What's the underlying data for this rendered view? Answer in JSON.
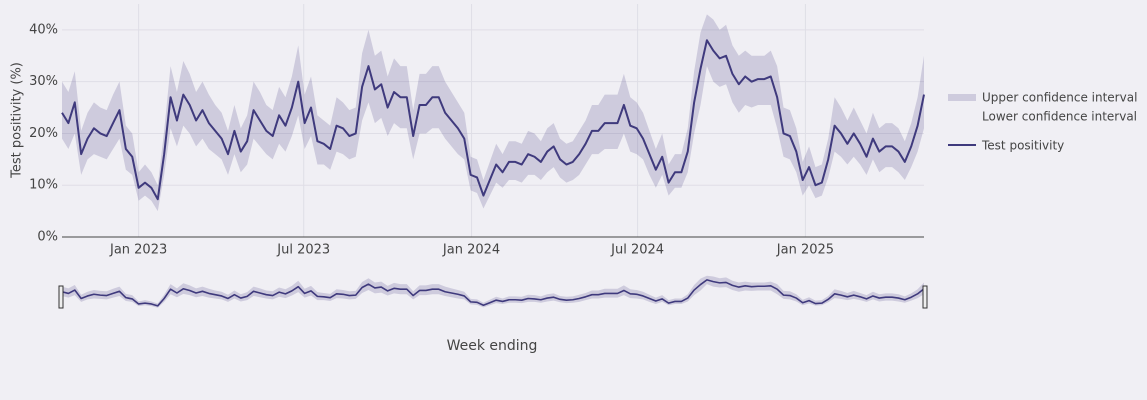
{
  "chart_data": {
    "type": "line",
    "x_label": "Week ending",
    "y_label": "Test positivity (%)",
    "x": [
      "2022-10-09",
      "2022-10-16",
      "2022-10-23",
      "2022-10-30",
      "2022-11-06",
      "2022-11-13",
      "2022-11-20",
      "2022-11-27",
      "2022-12-04",
      "2022-12-11",
      "2022-12-18",
      "2022-12-25",
      "2023-01-01",
      "2023-01-08",
      "2023-01-15",
      "2023-01-22",
      "2023-01-29",
      "2023-02-05",
      "2023-02-12",
      "2023-02-19",
      "2023-02-26",
      "2023-03-05",
      "2023-03-12",
      "2023-03-19",
      "2023-03-26",
      "2023-04-02",
      "2023-04-09",
      "2023-04-16",
      "2023-04-23",
      "2023-04-30",
      "2023-05-07",
      "2023-05-14",
      "2023-05-21",
      "2023-05-28",
      "2023-06-04",
      "2023-06-11",
      "2023-06-18",
      "2023-06-25",
      "2023-07-02",
      "2023-07-09",
      "2023-07-16",
      "2023-07-23",
      "2023-07-30",
      "2023-08-06",
      "2023-08-13",
      "2023-08-20",
      "2023-08-27",
      "2023-09-03",
      "2023-09-10",
      "2023-09-17",
      "2023-09-24",
      "2023-10-01",
      "2023-10-08",
      "2023-10-15",
      "2023-10-22",
      "2023-10-29",
      "2023-11-05",
      "2023-11-12",
      "2023-11-19",
      "2023-11-26",
      "2023-12-03",
      "2023-12-10",
      "2023-12-17",
      "2023-12-24",
      "2023-12-31",
      "2024-01-07",
      "2024-01-14",
      "2024-01-21",
      "2024-01-28",
      "2024-02-04",
      "2024-02-11",
      "2024-02-18",
      "2024-02-25",
      "2024-03-03",
      "2024-03-10",
      "2024-03-17",
      "2024-03-24",
      "2024-03-31",
      "2024-04-07",
      "2024-04-14",
      "2024-04-21",
      "2024-04-28",
      "2024-05-05",
      "2024-05-12",
      "2024-05-19",
      "2024-05-26",
      "2024-06-02",
      "2024-06-09",
      "2024-06-16",
      "2024-06-23",
      "2024-06-30",
      "2024-07-07",
      "2024-07-14",
      "2024-07-21",
      "2024-07-28",
      "2024-08-04",
      "2024-08-11",
      "2024-08-18",
      "2024-08-25",
      "2024-09-01",
      "2024-09-08",
      "2024-09-15",
      "2024-09-22",
      "2024-09-29",
      "2024-10-06",
      "2024-10-13",
      "2024-10-20",
      "2024-10-27",
      "2024-11-03",
      "2024-11-10",
      "2024-11-17",
      "2024-11-24",
      "2024-12-01",
      "2024-12-08",
      "2024-12-15",
      "2024-12-22",
      "2024-12-29",
      "2025-01-05",
      "2025-01-12",
      "2025-01-19",
      "2025-01-26",
      "2025-02-02",
      "2025-02-09",
      "2025-02-16",
      "2025-02-23",
      "2025-03-02",
      "2025-03-09",
      "2025-03-16",
      "2025-03-23",
      "2025-03-30",
      "2025-04-06",
      "2025-04-13",
      "2025-04-20",
      "2025-04-27",
      "2025-05-04",
      "2025-05-11"
    ],
    "series": [
      {
        "name": "Upper confidence interval",
        "color": "rgba(72,60,130,0.2)",
        "values": [
          30,
          28,
          32,
          20.5,
          24,
          26,
          25,
          24.5,
          27.5,
          30,
          21.5,
          20,
          12.5,
          14,
          12.5,
          10,
          20.5,
          33,
          28,
          34,
          31.5,
          28,
          30,
          27.5,
          25.5,
          24,
          20.5,
          25.5,
          21,
          23.5,
          30,
          28,
          25.5,
          24.5,
          29,
          27,
          31,
          37,
          27.5,
          31,
          23.5,
          22.5,
          21.5,
          27,
          26,
          24.5,
          25,
          35.5,
          40,
          35,
          36,
          31,
          34.5,
          33,
          33,
          24.5,
          31.5,
          31.5,
          33,
          33,
          30,
          28,
          26,
          24,
          15.5,
          15,
          11,
          14.5,
          18,
          16,
          18.5,
          18.5,
          18,
          20.5,
          20,
          18.5,
          21,
          22,
          19,
          18,
          18.5,
          20.5,
          22.5,
          25.5,
          25.5,
          27.5,
          27.5,
          27.5,
          31.5,
          27,
          26,
          24,
          20.5,
          17,
          20,
          14,
          16,
          16,
          21,
          32,
          39.5,
          43,
          42,
          40,
          41,
          37,
          35,
          36,
          35,
          35,
          35,
          36,
          33,
          25,
          24.5,
          21,
          14.5,
          17.5,
          13.5,
          14,
          19,
          27,
          25,
          22.5,
          25,
          22.5,
          20,
          24,
          21,
          22,
          22,
          21,
          18.5,
          22,
          27,
          35
        ]
      },
      {
        "name": "Lower confidence interval",
        "values": [
          19,
          17,
          20,
          12,
          15,
          16,
          15.5,
          15,
          17,
          19,
          13,
          12,
          7,
          8,
          7,
          5,
          12,
          21,
          17.5,
          21.5,
          20,
          17.5,
          19,
          17,
          16,
          15,
          12,
          16,
          12.5,
          14,
          19,
          17.5,
          16,
          15,
          18,
          16.5,
          19.5,
          23.5,
          17,
          19.5,
          14,
          14,
          13,
          16.5,
          16,
          15,
          15.5,
          22.5,
          26,
          22,
          23,
          19.5,
          22,
          21,
          21,
          15,
          20,
          20,
          21,
          21,
          19,
          17.5,
          16,
          15,
          9,
          8.5,
          5.5,
          8,
          10.5,
          9.5,
          11,
          11,
          10.5,
          12,
          12,
          11,
          12.5,
          13.5,
          11.5,
          10.5,
          11,
          12,
          14,
          16,
          16,
          17,
          17,
          17,
          20,
          16.5,
          16,
          15,
          12,
          9.5,
          12,
          8,
          9.5,
          9.5,
          12.5,
          20,
          25.5,
          33,
          30,
          29,
          29.5,
          26,
          24,
          25.5,
          25,
          25.5,
          25.5,
          25.5,
          21,
          15.5,
          15,
          12.5,
          8,
          10,
          7.5,
          8,
          11.5,
          16.5,
          15.5,
          14,
          15.5,
          14,
          12,
          15,
          12.5,
          13.5,
          13.5,
          12.5,
          11,
          13.5,
          16.5,
          21
        ]
      },
      {
        "name": "Test positivity",
        "color": "#3f3a7d",
        "values": [
          24,
          22,
          26,
          16,
          19,
          21,
          20,
          19.5,
          22,
          24.5,
          17,
          15.5,
          9.5,
          10.5,
          9.5,
          7.3,
          16,
          27,
          22.5,
          27.5,
          25.5,
          22.5,
          24.5,
          22,
          20.5,
          19,
          16,
          20.5,
          16.5,
          18.5,
          24.5,
          22.5,
          20.5,
          19.5,
          23.5,
          21.5,
          25,
          30,
          22,
          25,
          18.5,
          18,
          17,
          21.5,
          21,
          19.5,
          20,
          29,
          33,
          28.5,
          29.5,
          25,
          28,
          27,
          27,
          19.5,
          25.5,
          25.5,
          27,
          27,
          24,
          22.5,
          21,
          19,
          12,
          11.5,
          8,
          11,
          14,
          12.5,
          14.5,
          14.5,
          14,
          16,
          15.5,
          14.5,
          16.5,
          17.5,
          15,
          14,
          14.5,
          16,
          18,
          20.5,
          20.5,
          22,
          22,
          22,
          25.5,
          21.5,
          21,
          19,
          16,
          13,
          15.5,
          10.5,
          12.5,
          12.5,
          16.5,
          26,
          32.5,
          38,
          36,
          34.5,
          35,
          31.5,
          29.5,
          31,
          30,
          30.5,
          30.5,
          31,
          27,
          20,
          19.5,
          16.5,
          11,
          13.5,
          10,
          10.5,
          15,
          21.5,
          20,
          18,
          20,
          18,
          15.5,
          19,
          16.5,
          17.5,
          17.5,
          16.5,
          14.5,
          17.5,
          21.5,
          27.5
        ]
      }
    ],
    "xlim": [
      "2022-10-09",
      "2025-05-11"
    ],
    "xticks": [
      {
        "value": "2023-01-01",
        "label": "Jan 2023"
      },
      {
        "value": "2023-07-01",
        "label": "Jul 2023"
      },
      {
        "value": "2024-01-01",
        "label": "Jan 2024"
      },
      {
        "value": "2024-07-01",
        "label": "Jul 2024"
      },
      {
        "value": "2025-01-01",
        "label": "Jan 2025"
      }
    ],
    "ylim": [
      0,
      45
    ],
    "yticks": [
      {
        "value": 0,
        "label": "0%"
      },
      {
        "value": 10,
        "label": "10%"
      },
      {
        "value": 20,
        "label": "20%"
      },
      {
        "value": 30,
        "label": "30%"
      },
      {
        "value": 40,
        "label": "40%"
      }
    ],
    "grid": true,
    "legend": "right"
  }
}
